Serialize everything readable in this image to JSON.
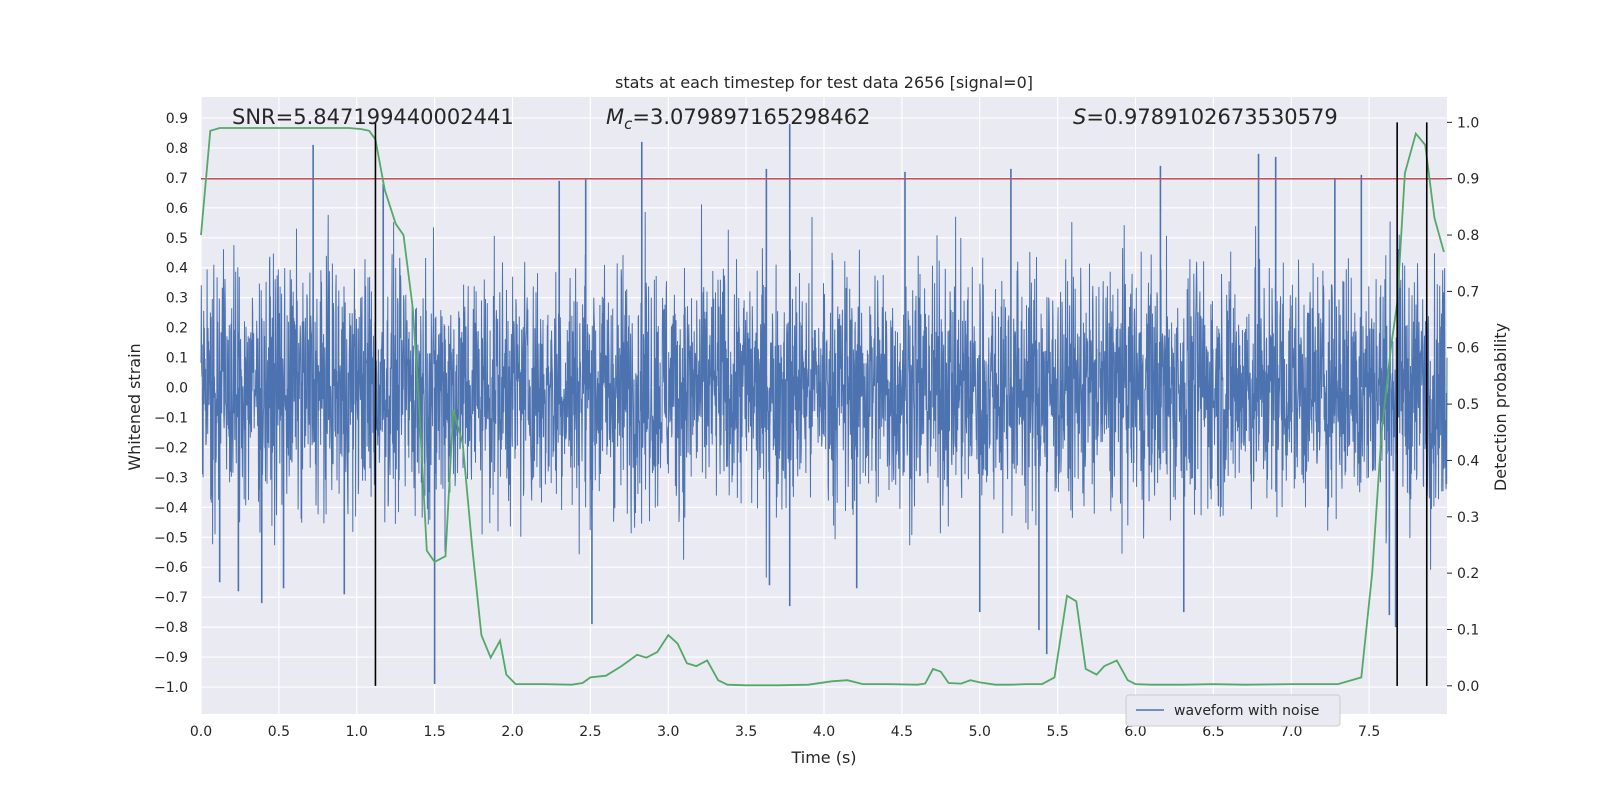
{
  "chart_data": {
    "type": "line",
    "title": "stats at each timestep for test data 2656 [signal=0]",
    "xlabel": "Time (s)",
    "ylabel_left": "Whitened strain",
    "ylabel_right": "Detection probability",
    "xlim": [
      0,
      8
    ],
    "ylim_left": [
      -1.09,
      0.97
    ],
    "ylim_right": [
      -0.05,
      1.045
    ],
    "x_ticks": [
      0.0,
      0.5,
      1.0,
      1.5,
      2.0,
      2.5,
      3.0,
      3.5,
      4.0,
      4.5,
      5.0,
      5.5,
      6.0,
      6.5,
      7.0,
      7.5
    ],
    "x_tick_labels": [
      "0.0",
      "0.5",
      "1.0",
      "1.5",
      "2.0",
      "2.5",
      "3.0",
      "3.5",
      "4.0",
      "4.5",
      "5.0",
      "5.5",
      "6.0",
      "6.5",
      "7.0",
      "7.5"
    ],
    "y_left_ticks": [
      0.9,
      0.8,
      0.7,
      0.6,
      0.5,
      0.4,
      0.3,
      0.2,
      0.1,
      0.0,
      -0.1,
      -0.2,
      -0.3,
      -0.4,
      -0.5,
      -0.6,
      -0.7,
      -0.8,
      -0.9,
      -1.0
    ],
    "y_left_tick_labels": [
      "0.9",
      "0.8",
      "0.7",
      "0.6",
      "0.5",
      "0.4",
      "0.3",
      "0.2",
      "0.1",
      "0.0",
      "−0.1",
      "−0.2",
      "−0.3",
      "−0.4",
      "−0.5",
      "−0.6",
      "−0.7",
      "−0.8",
      "−0.9",
      "−1.0"
    ],
    "y_right_ticks": [
      1.0,
      0.9,
      0.8,
      0.7,
      0.6,
      0.5,
      0.4,
      0.3,
      0.2,
      0.1,
      0.0
    ],
    "y_right_tick_labels": [
      "1.0",
      "0.9",
      "0.8",
      "0.7",
      "0.6",
      "0.5",
      "0.4",
      "0.3",
      "0.2",
      "0.1",
      "0.0"
    ],
    "grid": true,
    "legend": {
      "placement": "lower-right",
      "entries": [
        "waveform with noise"
      ]
    },
    "annotations": {
      "snr": "SNR=5.847199440002441",
      "mc_symbol": "M",
      "mc_sub": "c",
      "mc_value": "=3.079897165298462",
      "s_symbol": "S",
      "s_value": "=0.9789102673530579"
    },
    "threshold_line": {
      "axis": "right",
      "value": 0.9,
      "color": "#c44e52"
    },
    "vertical_markers": [
      1.12,
      7.68,
      7.87
    ],
    "series": [
      {
        "name": "waveform with noise",
        "axis": "left",
        "color": "#4c72b0",
        "description_envelope": {
          "typical_upper": 0.45,
          "typical_lower": -0.45,
          "num_samples": 4096
        },
        "peaks_x": [
          0.72,
          1.17,
          2.3,
          2.47,
          2.83,
          3.63,
          3.78,
          4.52,
          5.2,
          6.16,
          6.79,
          6.9,
          7.28,
          7.45
        ],
        "peaks_y": [
          0.81,
          0.68,
          0.69,
          0.7,
          0.82,
          0.73,
          0.88,
          0.72,
          0.73,
          0.74,
          0.78,
          0.77,
          0.7,
          0.71
        ],
        "troughs_x": [
          0.12,
          0.24,
          0.39,
          0.53,
          0.92,
          1.5,
          2.51,
          3.65,
          3.78,
          4.21,
          5.0,
          5.38,
          5.43,
          6.31,
          7.63,
          7.67
        ],
        "troughs_y": [
          -0.65,
          -0.68,
          -0.72,
          -0.67,
          -0.69,
          -0.99,
          -0.79,
          -0.66,
          -0.73,
          -0.67,
          -0.75,
          -0.81,
          -0.89,
          -0.75,
          -0.76,
          -0.8
        ]
      },
      {
        "name": "detection probability",
        "axis": "right",
        "color": "#55a868",
        "x": [
          0.0,
          0.06,
          0.12,
          0.2,
          0.4,
          0.6,
          0.8,
          0.95,
          1.03,
          1.08,
          1.12,
          1.18,
          1.25,
          1.3,
          1.36,
          1.4,
          1.45,
          1.5,
          1.57,
          1.62,
          1.68,
          1.74,
          1.8,
          1.86,
          1.92,
          1.96,
          2.02,
          2.2,
          2.38,
          2.45,
          2.5,
          2.6,
          2.7,
          2.8,
          2.86,
          2.93,
          3.0,
          3.06,
          3.12,
          3.18,
          3.25,
          3.32,
          3.38,
          3.5,
          3.7,
          3.9,
          4.05,
          4.15,
          4.25,
          4.4,
          4.6,
          4.65,
          4.7,
          4.75,
          4.8,
          4.88,
          4.94,
          5.0,
          5.1,
          5.2,
          5.3,
          5.4,
          5.48,
          5.56,
          5.62,
          5.68,
          5.75,
          5.8,
          5.88,
          5.95,
          6.0,
          6.1,
          6.3,
          6.5,
          6.7,
          7.0,
          7.3,
          7.45,
          7.52,
          7.58,
          7.64,
          7.68,
          7.73,
          7.8,
          7.86,
          7.92,
          7.98
        ],
        "y": [
          0.8,
          0.985,
          0.99,
          0.99,
          0.99,
          0.99,
          0.99,
          0.99,
          0.988,
          0.985,
          0.97,
          0.88,
          0.82,
          0.8,
          0.67,
          0.5,
          0.24,
          0.22,
          0.23,
          0.49,
          0.43,
          0.25,
          0.09,
          0.05,
          0.08,
          0.02,
          0.003,
          0.003,
          0.002,
          0.005,
          0.015,
          0.018,
          0.035,
          0.055,
          0.05,
          0.06,
          0.09,
          0.075,
          0.04,
          0.035,
          0.045,
          0.01,
          0.002,
          0.001,
          0.001,
          0.002,
          0.008,
          0.01,
          0.003,
          0.003,
          0.002,
          0.004,
          0.03,
          0.025,
          0.005,
          0.004,
          0.01,
          0.006,
          0.002,
          0.002,
          0.003,
          0.003,
          0.015,
          0.16,
          0.15,
          0.03,
          0.02,
          0.035,
          0.045,
          0.01,
          0.003,
          0.002,
          0.002,
          0.003,
          0.002,
          0.003,
          0.003,
          0.015,
          0.2,
          0.45,
          0.6,
          0.68,
          0.91,
          0.98,
          0.96,
          0.83,
          0.77
        ]
      }
    ]
  }
}
